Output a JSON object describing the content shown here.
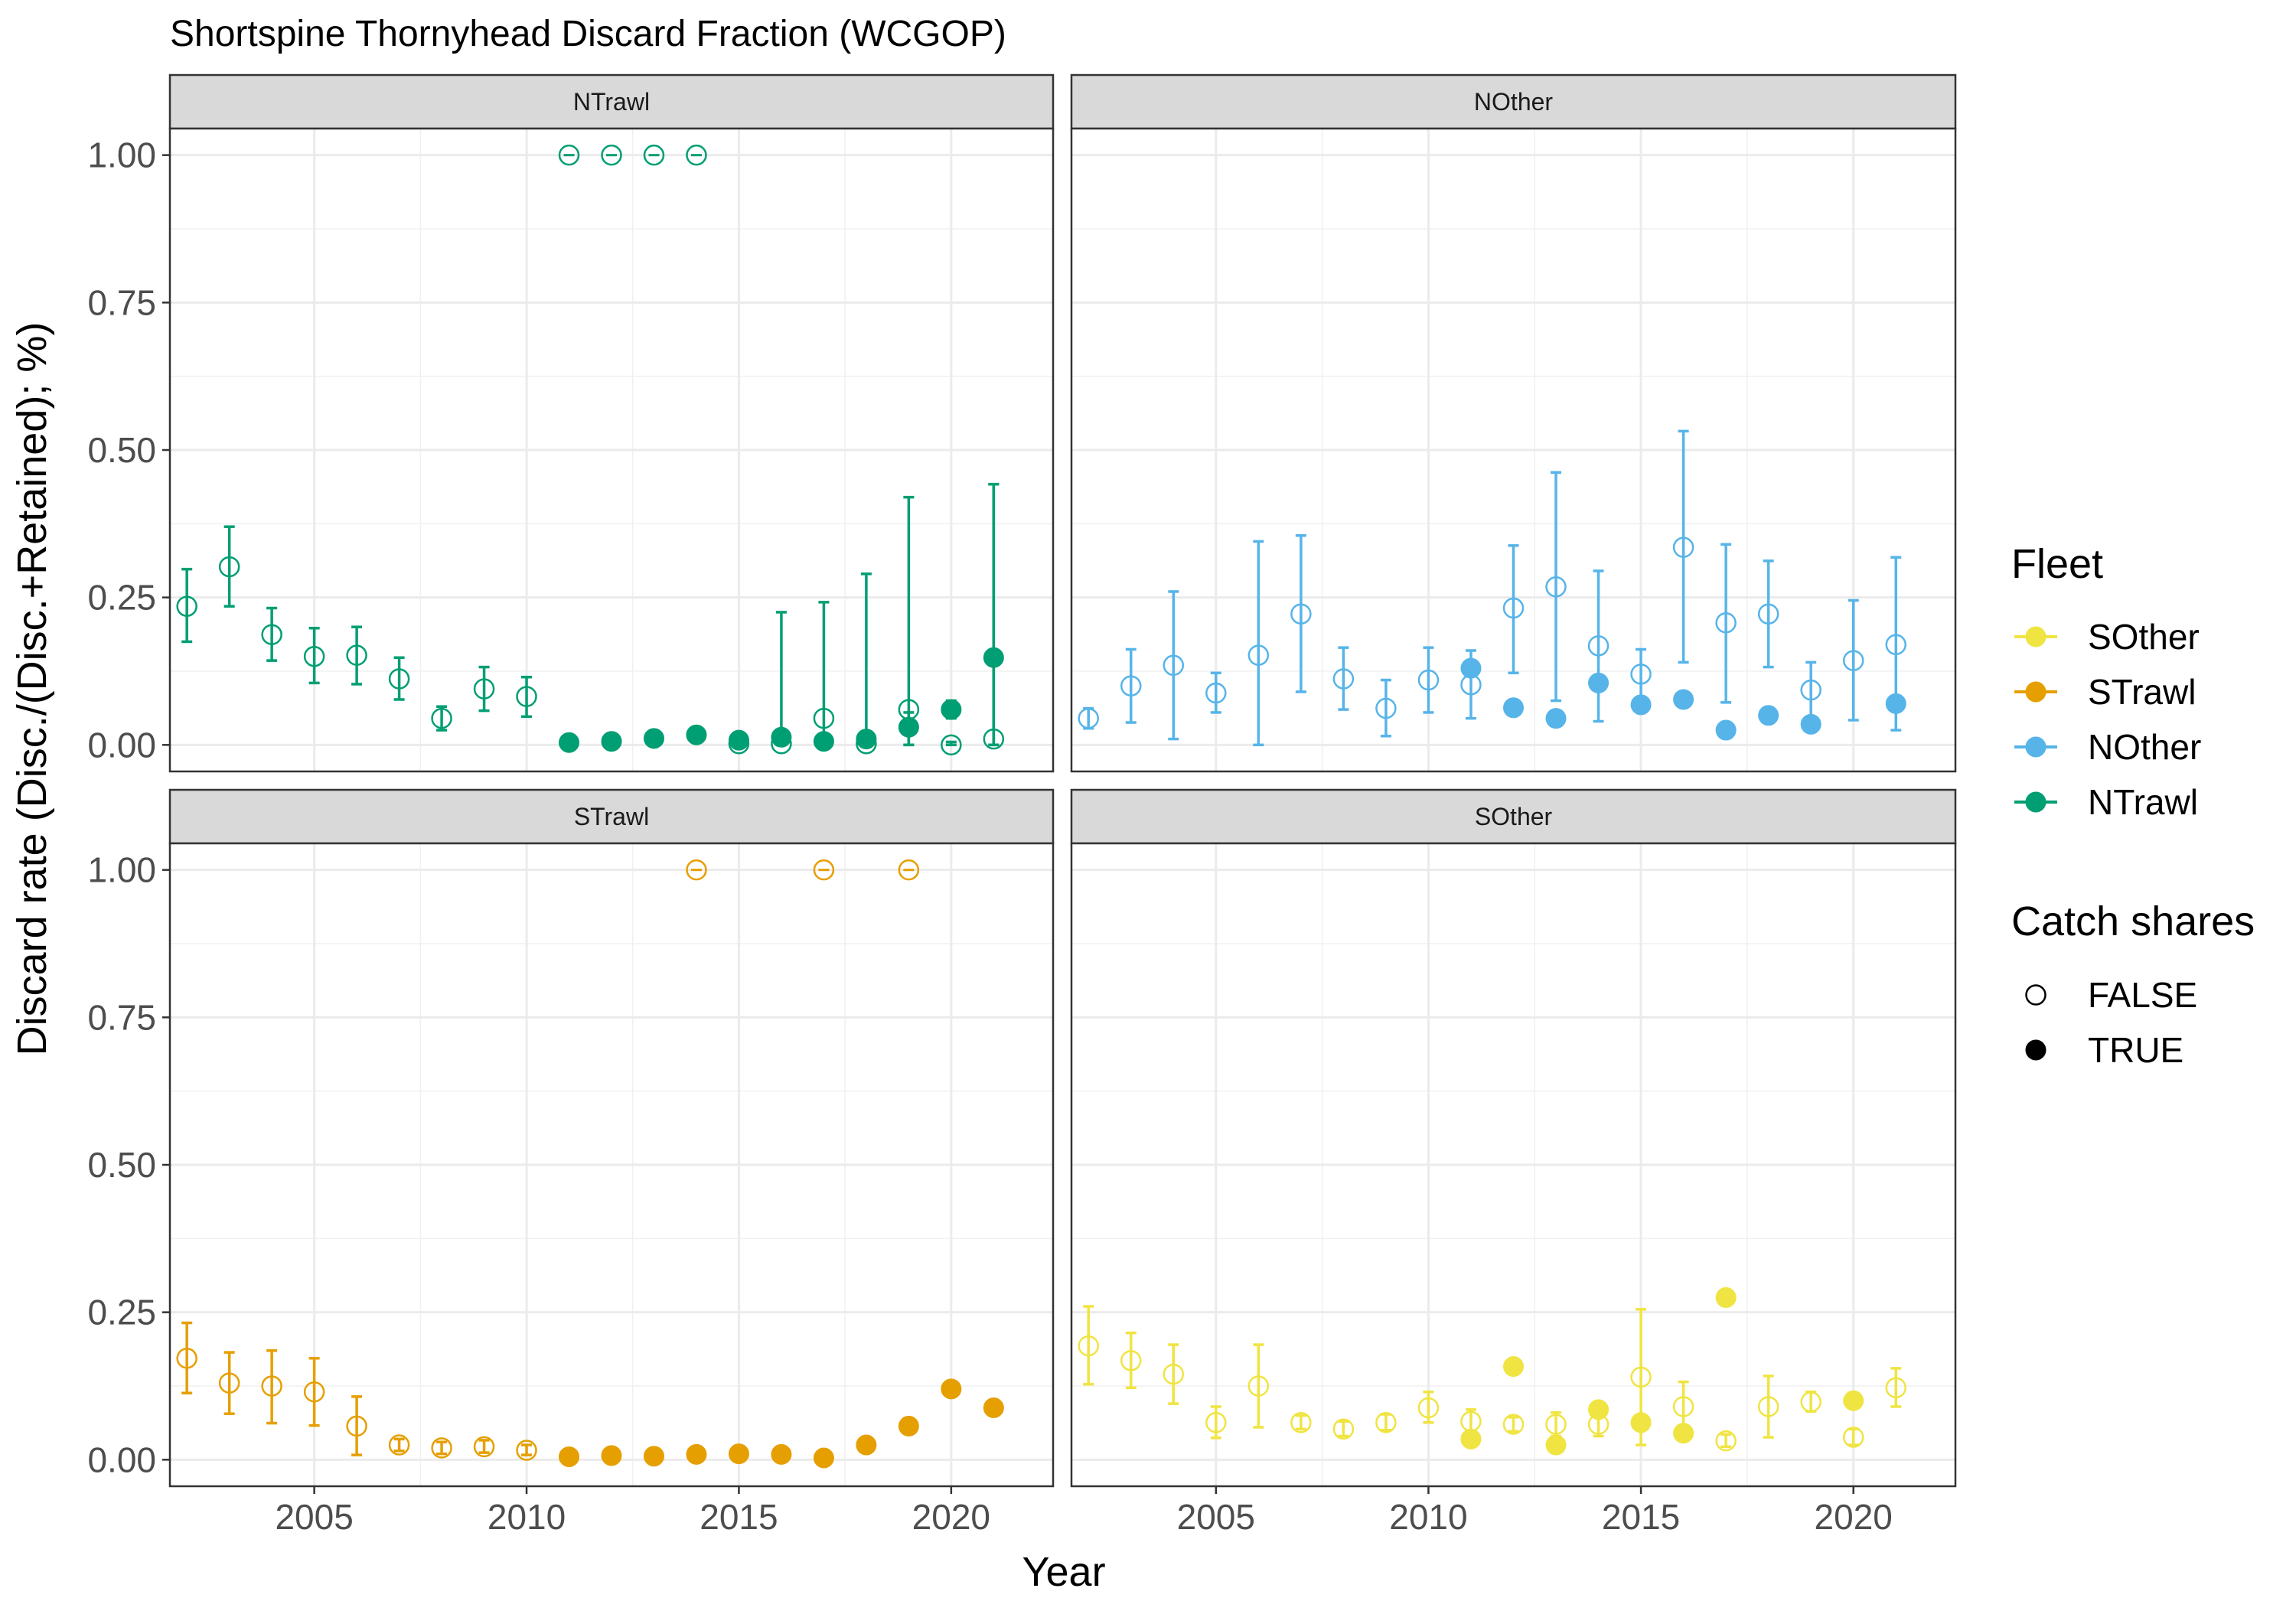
{
  "chart_data": {
    "type": "scatter",
    "title": "Shortspine Thornyhead Discard Fraction (WCGOP)",
    "xlabel": "Year",
    "ylabel": "Discard rate (Disc./(Disc.+Retained); %)",
    "xlim": [
      2001.6,
      2022.4
    ],
    "ylim": [
      -0.045,
      1.045
    ],
    "x_ticks": [
      2005,
      2010,
      2015,
      2020
    ],
    "y_ticks": [
      0.0,
      0.25,
      0.5,
      0.75,
      1.0
    ],
    "y_tick_labels": [
      "0.00",
      "0.25",
      "0.50",
      "0.75",
      "1.00"
    ],
    "facets": [
      "NTrawl",
      "NOther",
      "STrawl",
      "SOther"
    ],
    "colors": {
      "SOther": "#F0E442",
      "STrawl": "#E69F00",
      "NOther": "#56B4E9",
      "NTrawl": "#009E73"
    },
    "legend": {
      "position": "right",
      "fleet_title": "Fleet",
      "fleet_entries": [
        "SOther",
        "STrawl",
        "NOther",
        "NTrawl"
      ],
      "shape_title": "Catch shares",
      "shape_entries": [
        "FALSE",
        "TRUE"
      ]
    },
    "grid": true,
    "series": [
      {
        "fleet": "NTrawl",
        "catch_shares": false,
        "points": [
          {
            "x": 2002,
            "y": 0.235,
            "lo": 0.175,
            "hi": 0.298
          },
          {
            "x": 2003,
            "y": 0.302,
            "lo": 0.235,
            "hi": 0.37
          },
          {
            "x": 2004,
            "y": 0.187,
            "lo": 0.143,
            "hi": 0.232
          },
          {
            "x": 2005,
            "y": 0.15,
            "lo": 0.105,
            "hi": 0.198
          },
          {
            "x": 2006,
            "y": 0.152,
            "lo": 0.103,
            "hi": 0.2
          },
          {
            "x": 2007,
            "y": 0.112,
            "lo": 0.077,
            "hi": 0.148
          },
          {
            "x": 2008,
            "y": 0.045,
            "lo": 0.025,
            "hi": 0.065
          },
          {
            "x": 2009,
            "y": 0.095,
            "lo": 0.058,
            "hi": 0.132
          },
          {
            "x": 2010,
            "y": 0.082,
            "lo": 0.048,
            "hi": 0.115
          },
          {
            "x": 2011,
            "y": 1.0,
            "lo": 1.0,
            "hi": 1.0
          },
          {
            "x": 2012,
            "y": 1.0,
            "lo": 1.0,
            "hi": 1.0
          },
          {
            "x": 2013,
            "y": 1.0,
            "lo": 1.0,
            "hi": 1.0
          },
          {
            "x": 2014,
            "y": 1.0,
            "lo": 1.0,
            "hi": 1.0
          },
          {
            "x": 2015,
            "y": 0.002,
            "lo": 0.0,
            "hi": 0.01
          },
          {
            "x": 2016,
            "y": 0.002,
            "lo": 0.0,
            "hi": 0.01
          },
          {
            "x": 2017,
            "y": 0.045,
            "lo": 0.0,
            "hi": 0.242
          },
          {
            "x": 2018,
            "y": 0.002,
            "lo": 0.0,
            "hi": 0.01
          },
          {
            "x": 2019,
            "y": 0.06,
            "lo": 0.0,
            "hi": 0.42
          },
          {
            "x": 2020,
            "y": 0.0,
            "lo": 0.0,
            "hi": 0.005
          },
          {
            "x": 2021,
            "y": 0.01,
            "lo": 0.0,
            "hi": 0.442
          }
        ]
      },
      {
        "fleet": "NTrawl",
        "catch_shares": true,
        "points": [
          {
            "x": 2011,
            "y": 0.004,
            "lo": 0.0,
            "hi": 0.008
          },
          {
            "x": 2012,
            "y": 0.006,
            "lo": 0.002,
            "hi": 0.01
          },
          {
            "x": 2013,
            "y": 0.011,
            "lo": 0.006,
            "hi": 0.016
          },
          {
            "x": 2014,
            "y": 0.017,
            "lo": 0.01,
            "hi": 0.024
          },
          {
            "x": 2015,
            "y": 0.008,
            "lo": 0.003,
            "hi": 0.013
          },
          {
            "x": 2016,
            "y": 0.013,
            "lo": 0.0,
            "hi": 0.225
          },
          {
            "x": 2017,
            "y": 0.006,
            "lo": 0.002,
            "hi": 0.01
          },
          {
            "x": 2018,
            "y": 0.01,
            "lo": 0.0,
            "hi": 0.29
          },
          {
            "x": 2019,
            "y": 0.03,
            "lo": 0.0,
            "hi": 0.055
          },
          {
            "x": 2020,
            "y": 0.06,
            "lo": 0.045,
            "hi": 0.075
          },
          {
            "x": 2021,
            "y": 0.148,
            "lo": 0.0,
            "hi": 0.442
          }
        ]
      },
      {
        "fleet": "NOther",
        "catch_shares": false,
        "points": [
          {
            "x": 2002,
            "y": 0.045,
            "lo": 0.028,
            "hi": 0.062
          },
          {
            "x": 2003,
            "y": 0.1,
            "lo": 0.038,
            "hi": 0.162
          },
          {
            "x": 2004,
            "y": 0.135,
            "lo": 0.01,
            "hi": 0.26
          },
          {
            "x": 2005,
            "y": 0.088,
            "lo": 0.055,
            "hi": 0.122
          },
          {
            "x": 2006,
            "y": 0.152,
            "lo": 0.0,
            "hi": 0.345
          },
          {
            "x": 2007,
            "y": 0.222,
            "lo": 0.09,
            "hi": 0.355
          },
          {
            "x": 2008,
            "y": 0.112,
            "lo": 0.06,
            "hi": 0.165
          },
          {
            "x": 2009,
            "y": 0.062,
            "lo": 0.015,
            "hi": 0.11
          },
          {
            "x": 2010,
            "y": 0.11,
            "lo": 0.055,
            "hi": 0.165
          },
          {
            "x": 2011,
            "y": 0.102,
            "lo": 0.045,
            "hi": 0.16
          },
          {
            "x": 2012,
            "y": 0.232,
            "lo": 0.122,
            "hi": 0.338
          },
          {
            "x": 2013,
            "y": 0.268,
            "lo": 0.075,
            "hi": 0.462
          },
          {
            "x": 2014,
            "y": 0.168,
            "lo": 0.04,
            "hi": 0.295
          },
          {
            "x": 2015,
            "y": 0.12,
            "lo": 0.075,
            "hi": 0.162
          },
          {
            "x": 2016,
            "y": 0.335,
            "lo": 0.14,
            "hi": 0.532
          },
          {
            "x": 2017,
            "y": 0.207,
            "lo": 0.072,
            "hi": 0.34
          },
          {
            "x": 2018,
            "y": 0.222,
            "lo": 0.132,
            "hi": 0.312
          },
          {
            "x": 2019,
            "y": 0.093,
            "lo": 0.045,
            "hi": 0.14
          },
          {
            "x": 2020,
            "y": 0.143,
            "lo": 0.042,
            "hi": 0.245
          },
          {
            "x": 2021,
            "y": 0.17,
            "lo": 0.025,
            "hi": 0.318
          }
        ]
      },
      {
        "fleet": "NOther",
        "catch_shares": true,
        "points": [
          {
            "x": 2011,
            "y": 0.13,
            "lo": 0.13,
            "hi": 0.13
          },
          {
            "x": 2012,
            "y": 0.063,
            "lo": 0.063,
            "hi": 0.063
          },
          {
            "x": 2013,
            "y": 0.045,
            "lo": 0.045,
            "hi": 0.045
          },
          {
            "x": 2014,
            "y": 0.105,
            "lo": 0.105,
            "hi": 0.105
          },
          {
            "x": 2015,
            "y": 0.068,
            "lo": 0.068,
            "hi": 0.068
          },
          {
            "x": 2016,
            "y": 0.077,
            "lo": 0.077,
            "hi": 0.077
          },
          {
            "x": 2017,
            "y": 0.025,
            "lo": 0.025,
            "hi": 0.025
          },
          {
            "x": 2018,
            "y": 0.05,
            "lo": 0.05,
            "hi": 0.05
          },
          {
            "x": 2019,
            "y": 0.035,
            "lo": 0.035,
            "hi": 0.035
          },
          {
            "x": 2021,
            "y": 0.07,
            "lo": 0.07,
            "hi": 0.07
          }
        ]
      },
      {
        "fleet": "STrawl",
        "catch_shares": false,
        "points": [
          {
            "x": 2002,
            "y": 0.172,
            "lo": 0.113,
            "hi": 0.232
          },
          {
            "x": 2003,
            "y": 0.13,
            "lo": 0.078,
            "hi": 0.182
          },
          {
            "x": 2004,
            "y": 0.125,
            "lo": 0.062,
            "hi": 0.185
          },
          {
            "x": 2005,
            "y": 0.115,
            "lo": 0.058,
            "hi": 0.172
          },
          {
            "x": 2006,
            "y": 0.057,
            "lo": 0.008,
            "hi": 0.107
          },
          {
            "x": 2007,
            "y": 0.025,
            "lo": 0.015,
            "hi": 0.035
          },
          {
            "x": 2008,
            "y": 0.02,
            "lo": 0.01,
            "hi": 0.03
          },
          {
            "x": 2009,
            "y": 0.022,
            "lo": 0.012,
            "hi": 0.033
          },
          {
            "x": 2010,
            "y": 0.016,
            "lo": 0.008,
            "hi": 0.025
          },
          {
            "x": 2014,
            "y": 1.0,
            "lo": 1.0,
            "hi": 1.0
          },
          {
            "x": 2017,
            "y": 1.0,
            "lo": 1.0,
            "hi": 1.0
          },
          {
            "x": 2019,
            "y": 1.0,
            "lo": 1.0,
            "hi": 1.0
          }
        ]
      },
      {
        "fleet": "STrawl",
        "catch_shares": true,
        "points": [
          {
            "x": 2011,
            "y": 0.005,
            "lo": 0.005,
            "hi": 0.005
          },
          {
            "x": 2012,
            "y": 0.007,
            "lo": 0.007,
            "hi": 0.007
          },
          {
            "x": 2013,
            "y": 0.006,
            "lo": 0.006,
            "hi": 0.006
          },
          {
            "x": 2014,
            "y": 0.009,
            "lo": 0.009,
            "hi": 0.009
          },
          {
            "x": 2015,
            "y": 0.01,
            "lo": 0.01,
            "hi": 0.01
          },
          {
            "x": 2016,
            "y": 0.009,
            "lo": 0.009,
            "hi": 0.009
          },
          {
            "x": 2017,
            "y": 0.003,
            "lo": 0.003,
            "hi": 0.003
          },
          {
            "x": 2018,
            "y": 0.025,
            "lo": 0.025,
            "hi": 0.025
          },
          {
            "x": 2019,
            "y": 0.057,
            "lo": 0.057,
            "hi": 0.057
          },
          {
            "x": 2020,
            "y": 0.12,
            "lo": 0.12,
            "hi": 0.12
          },
          {
            "x": 2021,
            "y": 0.088,
            "lo": 0.088,
            "hi": 0.088
          }
        ]
      },
      {
        "fleet": "SOther",
        "catch_shares": false,
        "points": [
          {
            "x": 2002,
            "y": 0.193,
            "lo": 0.128,
            "hi": 0.26
          },
          {
            "x": 2003,
            "y": 0.168,
            "lo": 0.122,
            "hi": 0.215
          },
          {
            "x": 2004,
            "y": 0.145,
            "lo": 0.095,
            "hi": 0.195
          },
          {
            "x": 2005,
            "y": 0.063,
            "lo": 0.037,
            "hi": 0.09
          },
          {
            "x": 2006,
            "y": 0.125,
            "lo": 0.055,
            "hi": 0.195
          },
          {
            "x": 2007,
            "y": 0.063,
            "lo": 0.052,
            "hi": 0.075
          },
          {
            "x": 2008,
            "y": 0.052,
            "lo": 0.04,
            "hi": 0.065
          },
          {
            "x": 2009,
            "y": 0.063,
            "lo": 0.05,
            "hi": 0.077
          },
          {
            "x": 2010,
            "y": 0.088,
            "lo": 0.063,
            "hi": 0.115
          },
          {
            "x": 2011,
            "y": 0.065,
            "lo": 0.045,
            "hi": 0.085
          },
          {
            "x": 2012,
            "y": 0.06,
            "lo": 0.048,
            "hi": 0.072
          },
          {
            "x": 2013,
            "y": 0.06,
            "lo": 0.04,
            "hi": 0.08
          },
          {
            "x": 2014,
            "y": 0.06,
            "lo": 0.04,
            "hi": 0.08
          },
          {
            "x": 2015,
            "y": 0.14,
            "lo": 0.025,
            "hi": 0.255
          },
          {
            "x": 2016,
            "y": 0.09,
            "lo": 0.05,
            "hi": 0.132
          },
          {
            "x": 2017,
            "y": 0.032,
            "lo": 0.022,
            "hi": 0.043
          },
          {
            "x": 2018,
            "y": 0.09,
            "lo": 0.038,
            "hi": 0.142
          },
          {
            "x": 2019,
            "y": 0.098,
            "lo": 0.082,
            "hi": 0.115
          },
          {
            "x": 2020,
            "y": 0.038,
            "lo": 0.025,
            "hi": 0.052
          },
          {
            "x": 2021,
            "y": 0.122,
            "lo": 0.09,
            "hi": 0.155
          }
        ]
      },
      {
        "fleet": "SOther",
        "catch_shares": true,
        "points": [
          {
            "x": 2011,
            "y": 0.035,
            "lo": 0.035,
            "hi": 0.035
          },
          {
            "x": 2012,
            "y": 0.158,
            "lo": 0.158,
            "hi": 0.158
          },
          {
            "x": 2013,
            "y": 0.025,
            "lo": 0.025,
            "hi": 0.025
          },
          {
            "x": 2014,
            "y": 0.085,
            "lo": 0.085,
            "hi": 0.085
          },
          {
            "x": 2015,
            "y": 0.063,
            "lo": 0.063,
            "hi": 0.063
          },
          {
            "x": 2016,
            "y": 0.045,
            "lo": 0.045,
            "hi": 0.045
          },
          {
            "x": 2017,
            "y": 0.275,
            "lo": 0.275,
            "hi": 0.275
          },
          {
            "x": 2020,
            "y": 0.1,
            "lo": 0.1,
            "hi": 0.1
          }
        ]
      }
    ]
  }
}
